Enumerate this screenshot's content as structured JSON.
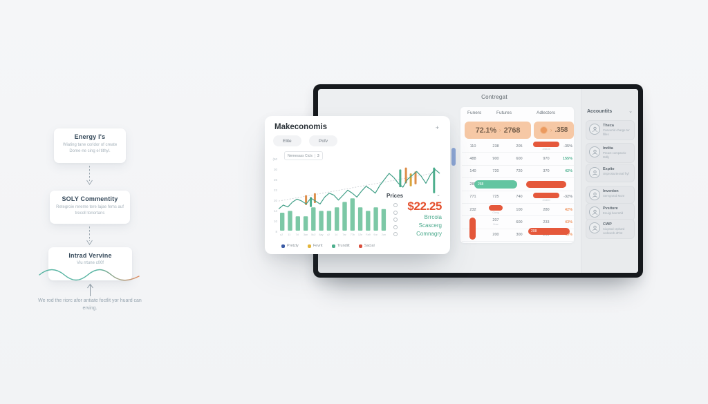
{
  "flow": {
    "steps": [
      {
        "title": "Energy I's",
        "body": "Wiating tane coridor of create Dome-ne cing el tithyl."
      },
      {
        "title": "SOLY Commentity",
        "body": "Retegroie rereme tere lajae fems auf trecoll tonortans"
      },
      {
        "title": "Intrad Vervine",
        "body": "Viu rrtune c00f"
      }
    ],
    "caption": "We rod the riorc afor antiate foctlit yor huard can erving."
  },
  "screen": {
    "title": "Contregat",
    "toolbar": {
      "icons": [
        "help-icon",
        "user-icon"
      ]
    },
    "table": {
      "col_headers": [
        "Funers",
        "Futures",
        "Adlectors"
      ],
      "summary1": {
        "pct": "72.1%",
        "arrow": "›",
        "value": "2768"
      },
      "summary2": {
        "badge": "2",
        "arrow": "›",
        "value": ".358"
      },
      "rows": [
        [
          {
            "t": "110"
          },
          {
            "t": "238"
          },
          {
            "t": "205"
          },
          {
            "bar": 0.85,
            "sub": "24015"
          },
          {
            "pct": "-35%",
            "c": "gray"
          }
        ],
        [
          {
            "t": "488"
          },
          {
            "t": "900"
          },
          {
            "t": "600"
          },
          {
            "t": "970"
          },
          {
            "pct": "155%",
            "c": "teal"
          }
        ],
        [
          {
            "t": "140"
          },
          {
            "t": "720"
          },
          {
            "t": "720"
          },
          {
            "t": "370"
          },
          {
            "pct": "42%",
            "c": "teal"
          }
        ],
        [
          {
            "t": "288"
          },
          {
            "tpill": "268"
          },
          {
            "skip": true
          },
          {
            "bar": 1.3,
            "long": true
          },
          {
            "skip": true
          }
        ],
        [
          {
            "t": "771"
          },
          {
            "t": "725"
          },
          {
            "t": "740"
          },
          {
            "bar": 0.85,
            "sub": "24400"
          },
          {
            "pct": "-32%",
            "c": "gray"
          }
        ],
        [
          {
            "t": "232"
          },
          {
            "spill": "4413",
            "sub": "Cimg"
          },
          {
            "t": "100"
          },
          {
            "t": "280"
          },
          {
            "pct": "42%",
            "c": "orange"
          }
        ],
        [
          {
            "vpill": true
          },
          {
            "t": "207",
            "sub": "2mv"
          },
          {
            "t": "600"
          },
          {
            "t": "233",
            "npill": "208"
          },
          {
            "pct": "43%",
            "c": "orange"
          }
        ],
        [
          {
            "skip": true
          },
          {
            "t": "200"
          },
          {
            "t": "300"
          },
          {
            "t": "260"
          },
          {
            "pct": "45%",
            "c": "orange"
          }
        ]
      ]
    },
    "accounts": {
      "header": "Accountits",
      "items": [
        {
          "title": "Theca",
          "sub": "Casvertid charge tur filles",
          "icon": "portrait-icon"
        },
        {
          "title": "Indita",
          "sub": "Preact compasrio Mdly",
          "icon": "face-icon"
        },
        {
          "title": "Expite",
          "sub": "Unprosturtesnaf fryf",
          "icon": "person-icon"
        },
        {
          "title": "Invenion",
          "sub": "Seregrotrd More",
          "icon": "book-icon"
        },
        {
          "title": "Pvsiture",
          "sub": "Enuigi beerWid",
          "icon": "smile-icon"
        },
        {
          "title": "CWP",
          "sub": "Ciupssd crphard cedsserb dPist",
          "icon": "brain-icon"
        }
      ]
    }
  },
  "card": {
    "title": "Makeconomis",
    "add_label": "+",
    "buttons": [
      "Elite",
      "Pofv"
    ],
    "dropdown": {
      "label": "Nemesass Cicls",
      "badge": "3"
    },
    "prices": {
      "label": "Prices",
      "value": "$22.25",
      "lines": [
        "Brrcola",
        "Scascerg",
        "Comnagry"
      ]
    },
    "legend": [
      {
        "label": "Pretzly",
        "color": "#3b5ba5"
      },
      {
        "label": "Fevrit",
        "color": "#e3b53a"
      },
      {
        "label": "Trundilt",
        "color": "#4daf8d"
      },
      {
        "label": "Sacial",
        "color": "#d94f3d"
      }
    ]
  },
  "chart_data": {
    "type": "line+bar",
    "title": "Makeconomis",
    "ylim": [
      0,
      70
    ],
    "y_ticks": [
      "(50",
      "30",
      "26",
      "22",
      "20",
      "14",
      "10",
      "8"
    ],
    "line": {
      "name": "price-line",
      "color": "#3f9e86",
      "values": [
        22,
        26,
        24,
        29,
        32,
        30,
        27,
        33,
        30,
        27,
        34,
        38,
        36,
        31,
        36,
        41,
        38,
        34,
        40,
        45,
        42,
        38,
        46,
        52,
        58,
        54,
        48,
        44,
        52,
        56,
        60,
        55,
        48,
        57,
        62,
        58
      ]
    },
    "trend": {
      "from": 30,
      "to": 58,
      "style": "dashed",
      "color": "#c7ccd0"
    },
    "candles": [
      {
        "pos": 0.17,
        "low": 26,
        "high": 36,
        "color": "#dd8e4a"
      },
      {
        "pos": 0.2,
        "low": 24,
        "high": 34,
        "color": "#4daf8d"
      },
      {
        "pos": 0.225,
        "low": 28,
        "high": 38,
        "color": "#dd8e4a"
      },
      {
        "pos": 0.755,
        "low": 44,
        "high": 62,
        "color": "#4daf8d"
      },
      {
        "pos": 0.79,
        "low": 48,
        "high": 64,
        "color": "#dd8e4a"
      },
      {
        "pos": 0.82,
        "low": 45,
        "high": 58,
        "color": "#d9a43a"
      },
      {
        "pos": 0.85,
        "low": 47,
        "high": 60,
        "color": "#dd8e4a"
      },
      {
        "pos": 0.965,
        "low": 38,
        "high": 64,
        "color": "#4daf8d"
      }
    ],
    "bars": {
      "color": "#7cc8a6",
      "values": [
        10,
        11,
        8,
        8,
        13,
        11,
        11,
        13,
        16,
        18,
        13,
        11,
        13,
        12
      ],
      "labels": [
        "u2",
        "11",
        "7d",
        "3an",
        "5u2",
        "8ay",
        "u2",
        "14",
        "7ar",
        "77b",
        "12n",
        "Fa9",
        "9ur",
        "2un"
      ]
    }
  }
}
